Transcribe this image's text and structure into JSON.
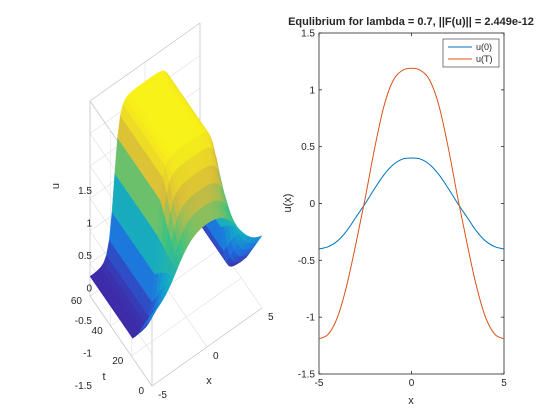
{
  "chart_data": [
    {
      "type": "surface",
      "xlabel": "x",
      "ylabel": "t",
      "zlabel": "u",
      "xlim": [
        -5,
        5
      ],
      "ylim": [
        0,
        60
      ],
      "zlim": [
        -1.5,
        1.5
      ],
      "x_ticks": [
        "-5",
        "0",
        "5"
      ],
      "y_ticks": [
        "0",
        "20",
        "40",
        "60"
      ],
      "z_ticks": [
        "-1.5",
        "-1",
        "-0.5",
        "0",
        "0.5",
        "1",
        "1.5"
      ],
      "surface": {
        "description_values": {
          "u_at_t0": "0.4*sech-like bump, min -0.4",
          "u_at_t60": "1.2 peak, min -1.2"
        },
        "x_samples": [
          -5,
          -4,
          -3,
          -2,
          -1,
          0,
          1,
          2,
          3,
          4,
          5
        ],
        "t_samples": [
          0,
          10,
          20,
          30,
          40,
          50,
          60
        ],
        "colormap": "parula"
      }
    },
    {
      "type": "line",
      "title": "Equlibrium for lambda = 0.7, ||F(u)|| = 2.449e-12",
      "xlabel": "x",
      "ylabel": "u(x)",
      "xlim": [
        -5,
        5
      ],
      "ylim": [
        -1.5,
        1.5
      ],
      "x_ticks": [
        "-5",
        "0",
        "5"
      ],
      "y_ticks": [
        "-1.5",
        "-1",
        "-0.5",
        "0",
        "0.5",
        "1",
        "1.5"
      ],
      "legend_position": "top-right",
      "series": [
        {
          "name": "u(0)",
          "color": "#0072BD",
          "x": [
            -5,
            -4.5,
            -4,
            -3.5,
            -3,
            -2.5,
            -2,
            -1.5,
            -1,
            -0.5,
            0,
            0.5,
            1,
            1.5,
            2,
            2.5,
            3,
            3.5,
            4,
            4.5,
            5
          ],
          "y": [
            -0.4,
            -0.38,
            -0.33,
            -0.24,
            -0.12,
            0.0,
            0.13,
            0.25,
            0.34,
            0.39,
            0.4,
            0.39,
            0.34,
            0.25,
            0.13,
            0.0,
            -0.12,
            -0.24,
            -0.33,
            -0.38,
            -0.4
          ]
        },
        {
          "name": "u(T)",
          "color": "#D95319",
          "x": [
            -5,
            -4.5,
            -4,
            -3.5,
            -3,
            -2.5,
            -2,
            -1.5,
            -1,
            -0.5,
            0,
            0.5,
            1,
            1.5,
            2,
            2.5,
            3,
            3.5,
            4,
            4.5,
            5
          ],
          "y": [
            -1.19,
            -1.15,
            -1.0,
            -0.72,
            -0.35,
            0.05,
            0.48,
            0.85,
            1.08,
            1.17,
            1.19,
            1.17,
            1.08,
            0.85,
            0.48,
            0.05,
            -0.35,
            -0.72,
            -1.0,
            -1.15,
            -1.19
          ]
        }
      ]
    }
  ]
}
